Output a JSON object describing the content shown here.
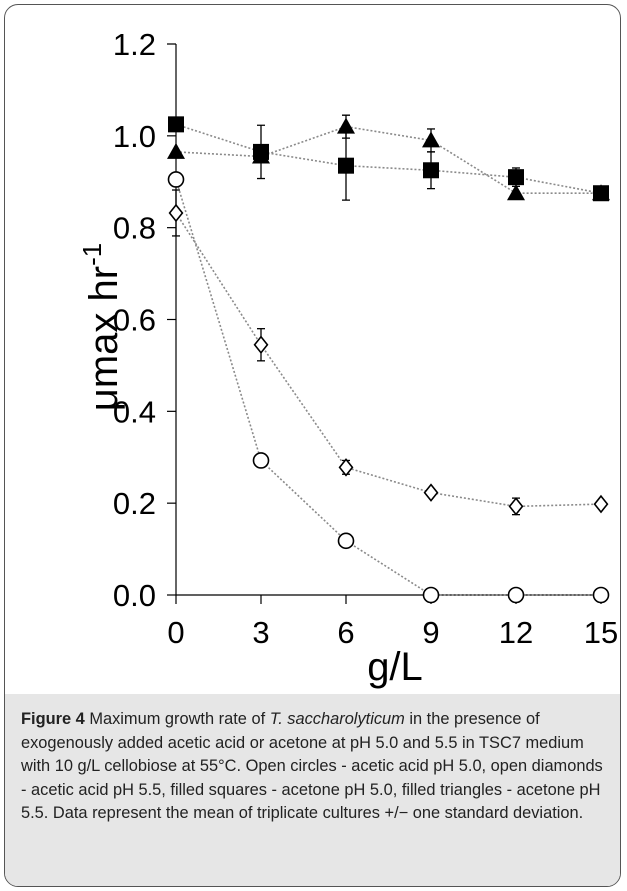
{
  "chart_data": {
    "type": "scatter",
    "xlabel": "g/L",
    "ylabel": "μmax hr",
    "ylabel_sup": "-1",
    "xlim": [
      0,
      15
    ],
    "ylim": [
      0,
      1.2
    ],
    "xticks": [
      0,
      3,
      6,
      9,
      12,
      15
    ],
    "xtick_labels": [
      "0",
      "3",
      "6",
      "9",
      "12",
      "15"
    ],
    "yticks": [
      0,
      0.2,
      0.4,
      0.6,
      0.8,
      1.0,
      1.2
    ],
    "ytick_labels": [
      "0.0",
      "0.2",
      "0.4",
      "0.6",
      "0.8",
      "1.0",
      "1.2"
    ],
    "grid": false,
    "series": [
      {
        "key": "acetic-acid-ph-5-0",
        "marker": "open-circle",
        "x": [
          0,
          3,
          6,
          9,
          12,
          15
        ],
        "y": [
          0.905,
          0.293,
          0.118,
          0.0,
          0.0,
          0.0
        ],
        "err": [
          0.0,
          0.01,
          0.012,
          0.0,
          0.0,
          0.0
        ]
      },
      {
        "key": "acetic-acid-ph-5-5",
        "marker": "open-diamond",
        "x": [
          0,
          3,
          6,
          9,
          12,
          15
        ],
        "y": [
          0.832,
          0.545,
          0.278,
          0.223,
          0.193,
          0.198
        ],
        "err": [
          0.05,
          0.035,
          0.015,
          0.0,
          0.018,
          0.0
        ]
      },
      {
        "key": "acetone-ph-5-0",
        "marker": "filled-square",
        "x": [
          0,
          3,
          6,
          9,
          12,
          15
        ],
        "y": [
          1.025,
          0.965,
          0.935,
          0.925,
          0.91,
          0.875
        ],
        "err": [
          0.0,
          0.058,
          0.075,
          0.04,
          0.02,
          0.0
        ]
      },
      {
        "key": "acetone-ph-5-5",
        "marker": "filled-triangle",
        "x": [
          0,
          3,
          6,
          9,
          12,
          15
        ],
        "y": [
          0.965,
          0.955,
          1.02,
          0.99,
          0.875,
          0.875
        ],
        "err": [
          0.0,
          0.0,
          0.025,
          0.025,
          0.0,
          0.0
        ]
      }
    ]
  },
  "caption": {
    "label": "Figure 4",
    "text_1": " Maximum growth rate of ",
    "species": "T. saccharolyticum",
    "text_2": " in the presence of exogenously added acetic acid or acetone at pH 5.0 and 5.5 in TSC7 medium with 10 g/L cellobiose at 55°C. Open circles - acetic acid pH 5.0, open diamonds - acetic acid pH 5.5, filled squares - acetone pH 5.0, filled triangles - acetone pH 5.5. Data represent the mean of triplicate cultures +/− one standard deviation."
  }
}
